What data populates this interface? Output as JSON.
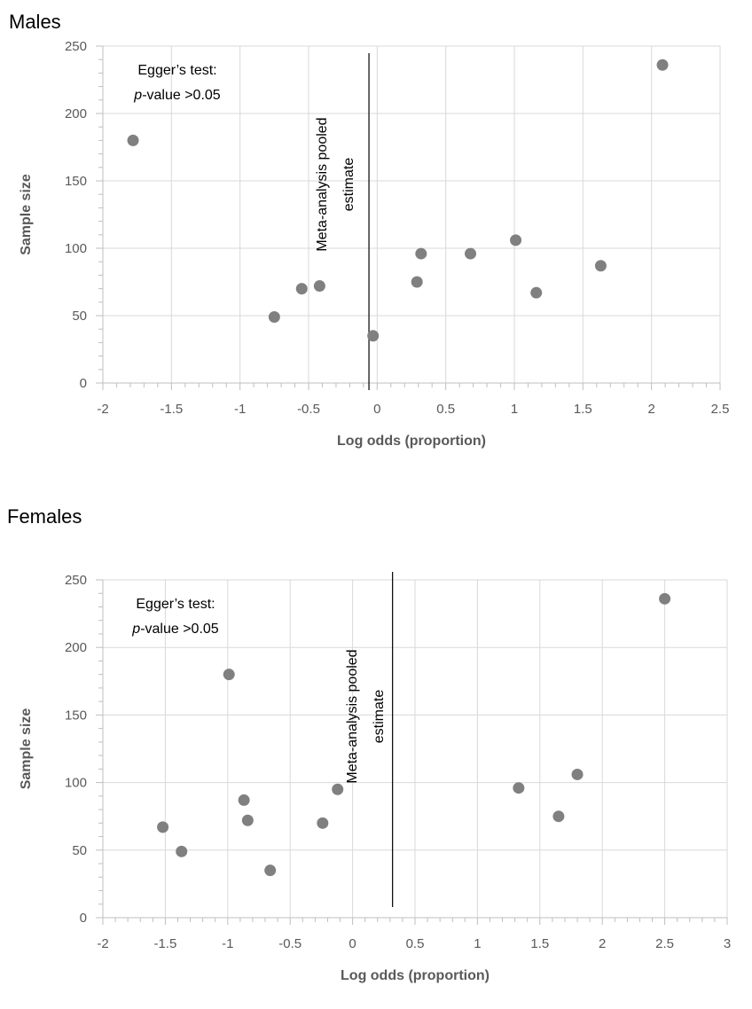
{
  "chart_data": [
    {
      "type": "scatter",
      "panel_title": "Males",
      "xlabel": "Log odds (proportion)",
      "ylabel": "Sample size",
      "xlim": [
        -2,
        2.5
      ],
      "ylim": [
        0,
        250
      ],
      "xticks": [
        "-2",
        "-1.5",
        "-1",
        "-0.5",
        "0",
        "0.5",
        "1",
        "1.5",
        "2",
        "2.5"
      ],
      "yticks": [
        "0",
        "50",
        "100",
        "150",
        "200",
        "250"
      ],
      "grid": true,
      "pooled_estimate": {
        "x": -0.06,
        "label_line1": "Meta-analysis pooled",
        "label_line2": "estimate"
      },
      "egger": {
        "line1": "Egger’s test:",
        "line2_italic": "p",
        "line2_rest": "-value >0.05"
      },
      "point_color": "#808080",
      "points": [
        {
          "x": -1.78,
          "y": 180
        },
        {
          "x": -0.75,
          "y": 49
        },
        {
          "x": -0.55,
          "y": 70
        },
        {
          "x": -0.42,
          "y": 72
        },
        {
          "x": -0.03,
          "y": 35
        },
        {
          "x": 0.29,
          "y": 75
        },
        {
          "x": 0.32,
          "y": 96
        },
        {
          "x": 0.68,
          "y": 96
        },
        {
          "x": 1.01,
          "y": 106
        },
        {
          "x": 1.16,
          "y": 67
        },
        {
          "x": 1.63,
          "y": 87
        },
        {
          "x": 2.08,
          "y": 236
        }
      ]
    },
    {
      "type": "scatter",
      "panel_title": "Females",
      "xlabel": "Log odds (proportion)",
      "ylabel": "Sample size",
      "xlim": [
        -2,
        3
      ],
      "ylim": [
        0,
        250
      ],
      "xticks": [
        "-2",
        "-1.5",
        "-1",
        "-0.5",
        "0",
        "0.5",
        "1",
        "1.5",
        "2",
        "2.5",
        "3"
      ],
      "yticks": [
        "0",
        "50",
        "100",
        "150",
        "200",
        "250"
      ],
      "grid": true,
      "pooled_estimate": {
        "x": 0.32,
        "label_line1": "Meta-analysis pooled",
        "label_line2": "estimate"
      },
      "egger": {
        "line1": "Egger’s test:",
        "line2_italic": "p",
        "line2_rest": "-value >0.05"
      },
      "point_color": "#808080",
      "points": [
        {
          "x": -1.52,
          "y": 67
        },
        {
          "x": -1.37,
          "y": 49
        },
        {
          "x": -0.99,
          "y": 180
        },
        {
          "x": -0.87,
          "y": 87
        },
        {
          "x": -0.84,
          "y": 72
        },
        {
          "x": -0.66,
          "y": 35
        },
        {
          "x": -0.24,
          "y": 70
        },
        {
          "x": -0.12,
          "y": 95
        },
        {
          "x": 1.33,
          "y": 96
        },
        {
          "x": 1.65,
          "y": 75
        },
        {
          "x": 1.8,
          "y": 106
        },
        {
          "x": 2.5,
          "y": 236
        }
      ]
    }
  ]
}
